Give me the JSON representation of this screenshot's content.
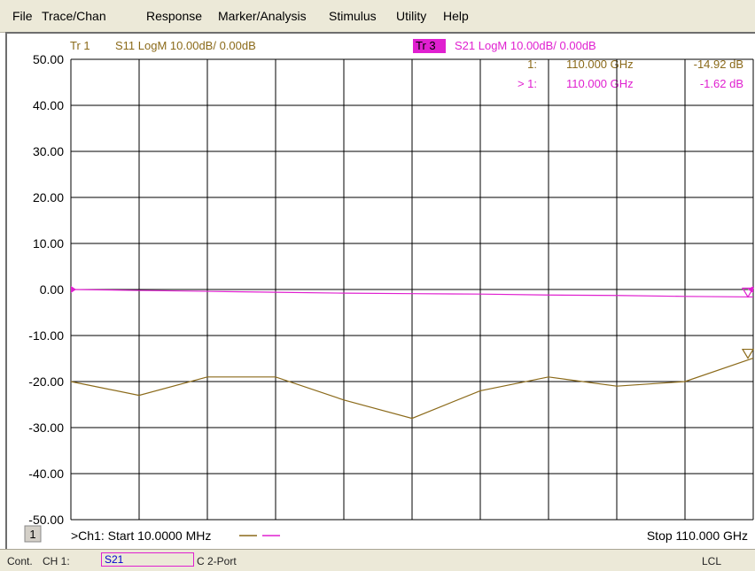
{
  "menu": [
    "File",
    "Trace/Chan",
    "Response",
    "Marker/Analysis",
    "Stimulus",
    "Utility",
    "Help"
  ],
  "colors": {
    "s11": "#8b6a1a",
    "s21": "#e020d0",
    "tr3_bg": "#e020d0",
    "grid": "#000000"
  },
  "status": {
    "mode": "Cont.",
    "channel": "CH 1:",
    "param": "S21",
    "cal": "C",
    "port": "2-Port",
    "lcl": "LCL"
  },
  "chart_data": {
    "type": "line",
    "traces": [
      {
        "id": "Tr 1",
        "label": "Tr 1",
        "desc": "S11 LogM 10.00dB/  0.00dB",
        "color": "#8b6a1a"
      },
      {
        "id": "Tr 3",
        "label": "Tr 3",
        "desc": "S21 LogM 10.00dB/  0.00dB",
        "color": "#e020d0"
      }
    ],
    "markers": [
      {
        "label": "1:",
        "freq": "110.000 GHz",
        "value": "-14.92 dB",
        "color": "#8b6a1a"
      },
      {
        "label": "> 1:",
        "freq": "110.000 GHz",
        "value": "-1.62 dB",
        "color": "#e020d0"
      }
    ],
    "y_ticks": [
      "50.00",
      "40.00",
      "30.00",
      "20.00",
      "10.00",
      "0.00",
      "-10.00",
      "-20.00",
      "-30.00",
      "-40.00",
      "-50.00"
    ],
    "ylim": [
      -50,
      50
    ],
    "xlim_ghz": [
      0.01,
      110
    ],
    "x_divisions": 10,
    "channel_number": "1",
    "start_label": ">Ch1: Start  10.0000 MHz",
    "stop_label": "Stop  110.000 GHz",
    "series": [
      {
        "name": "S11",
        "color": "#8b6a1a",
        "x": [
          0.01,
          11,
          22,
          33,
          44,
          55,
          66,
          77,
          88,
          99,
          110
        ],
        "y": [
          -20,
          -23,
          -19,
          -19,
          -24,
          -28,
          -22,
          -19,
          -21,
          -20,
          -14.92
        ]
      },
      {
        "name": "S21",
        "color": "#e020d0",
        "x": [
          0.01,
          11,
          22,
          33,
          44,
          55,
          66,
          77,
          88,
          99,
          110
        ],
        "y": [
          0,
          -0.2,
          -0.4,
          -0.6,
          -0.8,
          -0.9,
          -1.0,
          -1.2,
          -1.3,
          -1.5,
          -1.62
        ]
      }
    ]
  }
}
